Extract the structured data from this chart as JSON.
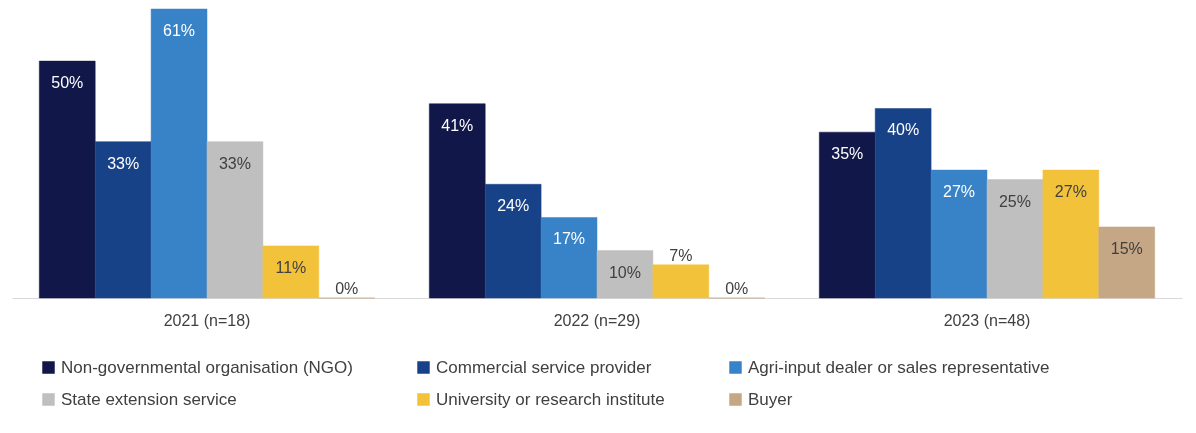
{
  "chart_data": {
    "type": "bar",
    "categories": [
      "2021 (n=18)",
      "2022 (n=29)",
      "2023 (n=48)"
    ],
    "series": [
      {
        "name": "Non-governmental organisation (NGO)",
        "color": "#12174a",
        "values": [
          50,
          41,
          35
        ],
        "value_labels": [
          "50%",
          "41%",
          "35%"
        ]
      },
      {
        "name": "Commercial service provider",
        "color": "#184287",
        "values": [
          33,
          24,
          40
        ],
        "value_labels": [
          "33%",
          "24%",
          "40%"
        ]
      },
      {
        "name": "Agri-input dealer or sales representative",
        "color": "#3883c8",
        "values": [
          61,
          17,
          27
        ],
        "value_labels": [
          "61%",
          "17%",
          "27%"
        ]
      },
      {
        "name": "State extension service",
        "color": "#bfbfbf",
        "values": [
          33,
          10,
          25
        ],
        "value_labels": [
          "33%",
          "10%",
          "25%"
        ]
      },
      {
        "name": "University or research institute",
        "color": "#f3c23b",
        "values": [
          11,
          7,
          27
        ],
        "value_labels": [
          "11%",
          "7%",
          "27%"
        ]
      },
      {
        "name": "Buyer",
        "color": "#c5a785",
        "values": [
          0,
          0,
          15
        ],
        "value_labels": [
          "0%",
          "0%",
          "15%"
        ]
      }
    ],
    "legend": "bottom"
  }
}
